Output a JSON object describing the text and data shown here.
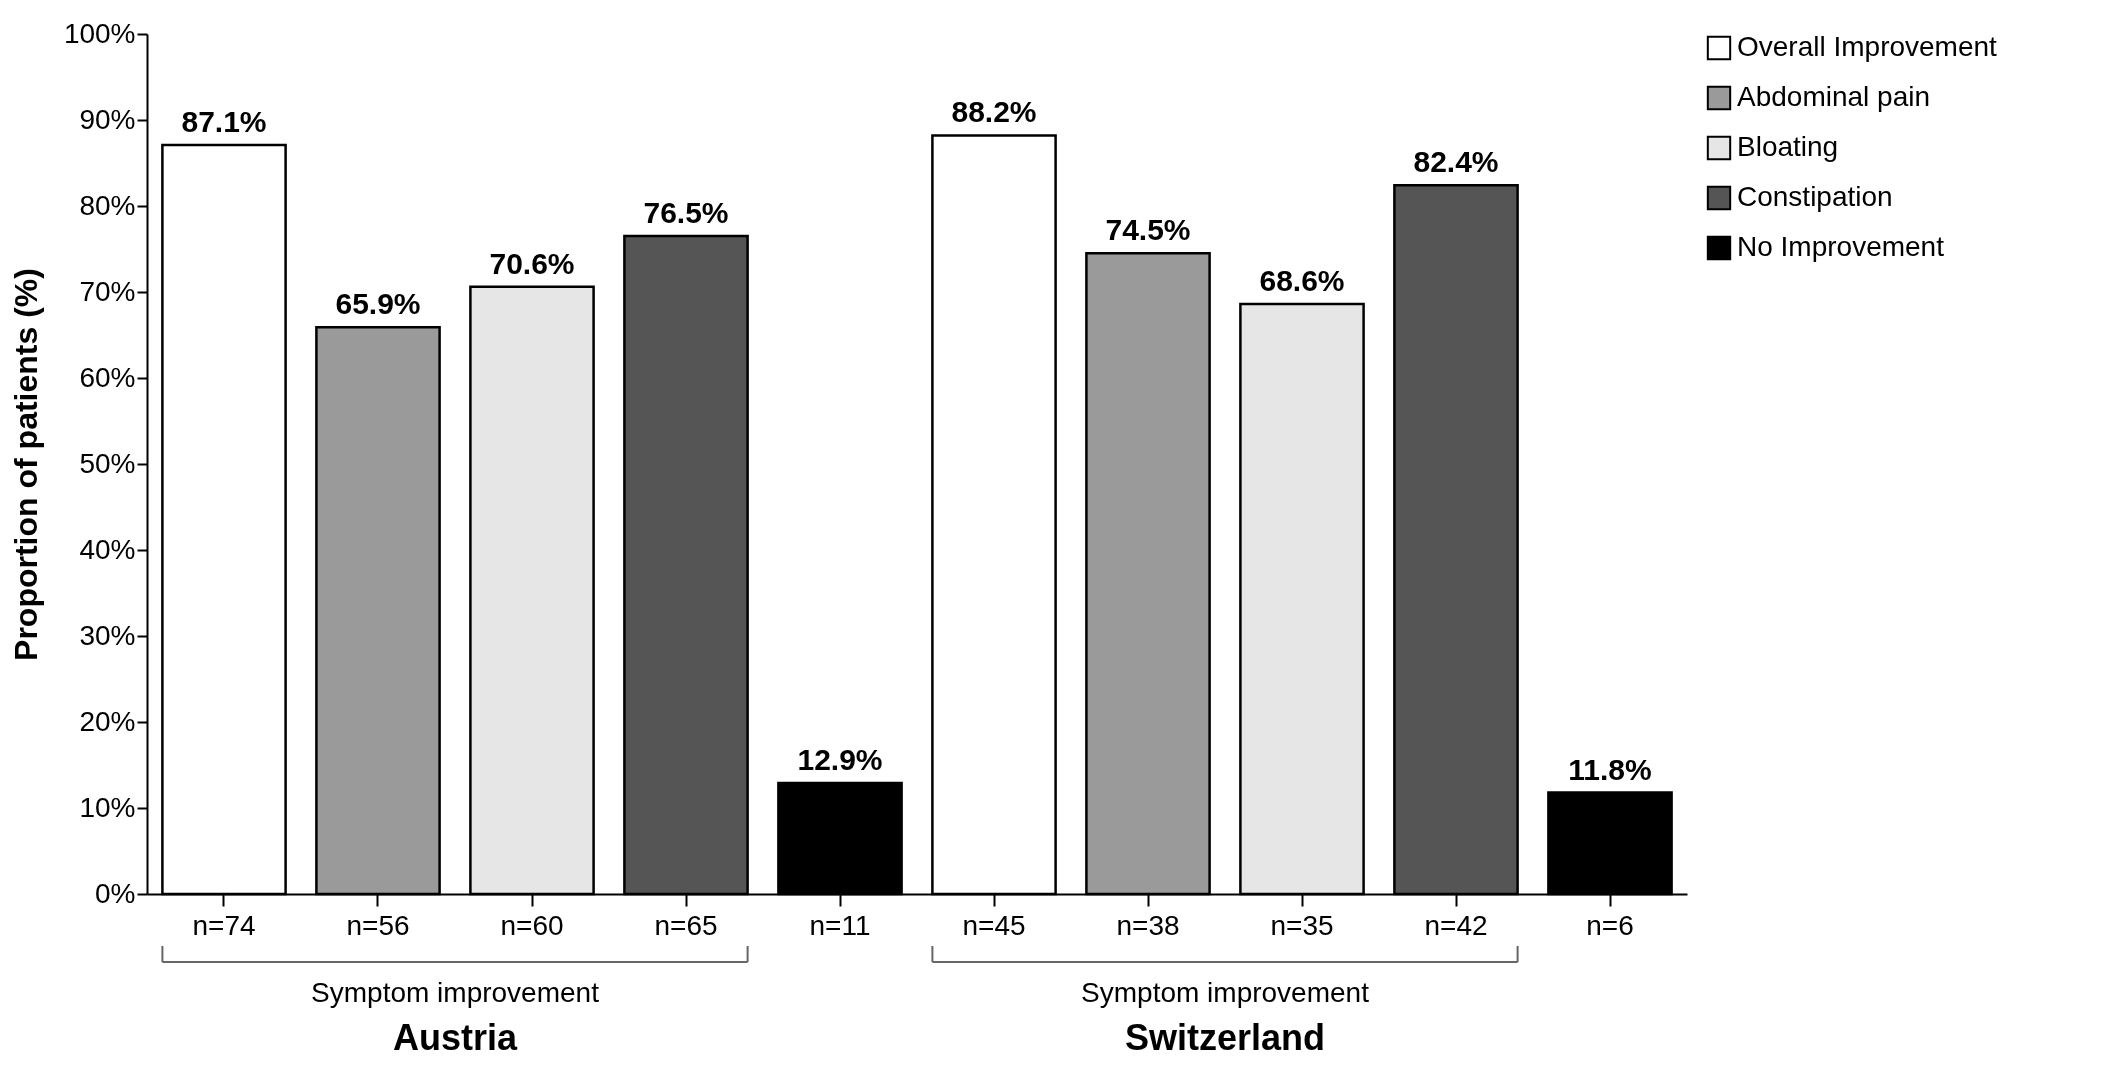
{
  "chart_data": {
    "type": "bar",
    "ylabel": "Proportion of patients (%)",
    "categories": [
      "n=74",
      "n=56",
      "n=60",
      "n=65",
      "n=11",
      "n=45",
      "n=38",
      "n=35",
      "n=42",
      "n=6"
    ],
    "series": [
      {
        "name": "Overall Improvement",
        "color": "#ffffff",
        "values": [
          87.1,
          null,
          null,
          null,
          null,
          88.2,
          null,
          null,
          null,
          null
        ],
        "value_labels": [
          "87.1%",
          null,
          null,
          null,
          null,
          "88.2%",
          null,
          null,
          null,
          null
        ]
      },
      {
        "name": "Abdominal pain",
        "color": "#9a9a9a",
        "values": [
          null,
          65.9,
          null,
          null,
          null,
          null,
          74.5,
          null,
          null,
          null
        ],
        "value_labels": [
          null,
          "65.9%",
          null,
          null,
          null,
          null,
          "74.5%",
          null,
          null,
          null
        ]
      },
      {
        "name": "Bloating",
        "color": "#e6e6e6",
        "values": [
          null,
          null,
          70.6,
          null,
          null,
          null,
          null,
          68.6,
          null,
          null
        ],
        "value_labels": [
          null,
          null,
          "70.6%",
          null,
          null,
          null,
          null,
          "68.6%",
          null,
          null
        ]
      },
      {
        "name": "Constipation",
        "color": "#555555",
        "values": [
          null,
          null,
          null,
          76.5,
          null,
          null,
          null,
          null,
          82.4,
          null
        ],
        "value_labels": [
          null,
          null,
          null,
          "76.5%",
          null,
          null,
          null,
          null,
          "82.4%",
          null
        ]
      },
      {
        "name": "No Improvement",
        "color": "#000000",
        "values": [
          null,
          null,
          null,
          null,
          12.9,
          null,
          null,
          null,
          null,
          11.8
        ],
        "value_labels": [
          null,
          null,
          null,
          null,
          "12.9%",
          null,
          null,
          null,
          null,
          "11.8%"
        ]
      }
    ],
    "ylim": [
      0,
      100
    ],
    "yticks": [
      {
        "value": 0,
        "label": "0%"
      },
      {
        "value": 10,
        "label": "10%"
      },
      {
        "value": 20,
        "label": "20%"
      },
      {
        "value": 30,
        "label": "30%"
      },
      {
        "value": 40,
        "label": "40%"
      },
      {
        "value": 50,
        "label": "50%"
      },
      {
        "value": 60,
        "label": "60%"
      },
      {
        "value": 70,
        "label": "70%"
      },
      {
        "value": 80,
        "label": "80%"
      },
      {
        "value": 90,
        "label": "90%"
      },
      {
        "value": 100,
        "label": "100%"
      }
    ],
    "annotations": [
      "Symptom improvement",
      "Austria",
      "Symptom improvement",
      "Switzerland"
    ],
    "grid": false,
    "legend": "top right"
  }
}
